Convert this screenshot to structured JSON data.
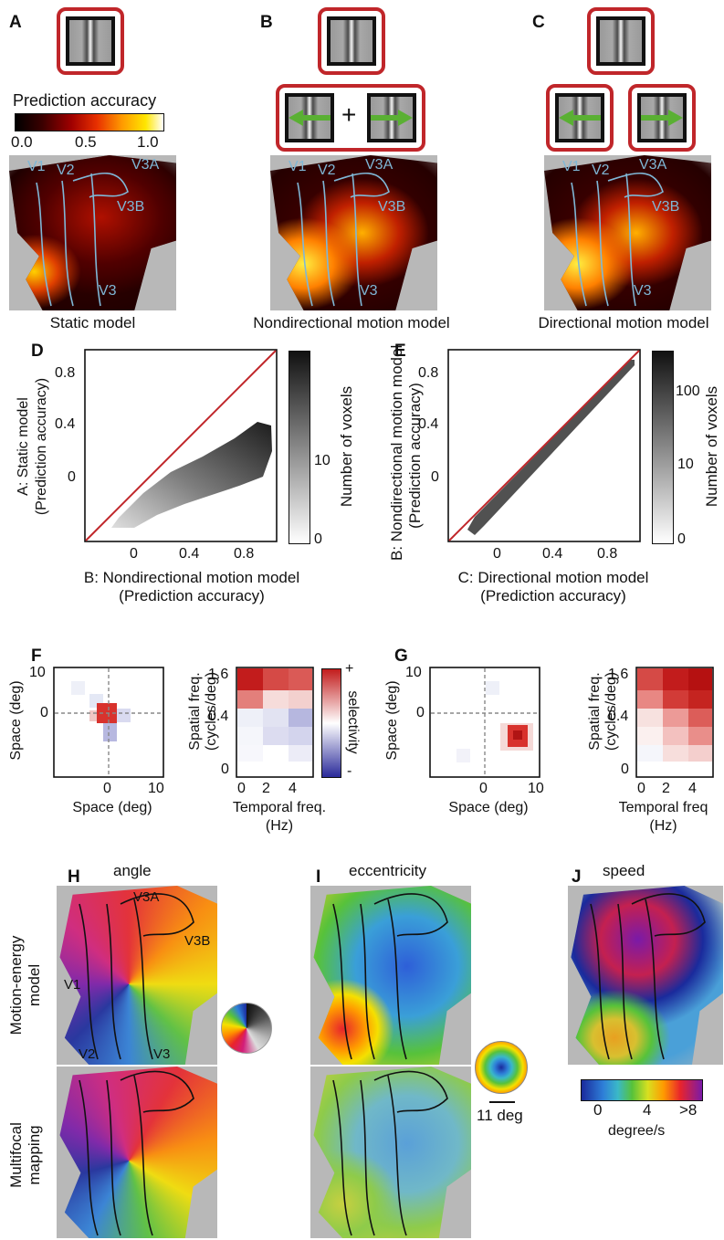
{
  "panels": {
    "A": {
      "label": "A",
      "caption": "Static model"
    },
    "B": {
      "label": "B",
      "caption": "Nondirectional motion model",
      "plus": "+"
    },
    "C": {
      "label": "C",
      "caption": "Directional motion model"
    },
    "D": {
      "label": "D"
    },
    "E": {
      "label": "E"
    },
    "F": {
      "label": "F"
    },
    "G": {
      "label": "G"
    },
    "H": {
      "label": "H",
      "title": "angle"
    },
    "I": {
      "label": "I",
      "title": "eccentricity"
    },
    "J": {
      "label": "J",
      "title": "speed"
    }
  },
  "accuracy_colorbar": {
    "title": "Prediction accuracy",
    "ticks": [
      "0.0",
      "0.5",
      "1.0"
    ]
  },
  "roi_labels": [
    "V1",
    "V2",
    "V3A",
    "V3B",
    "V3"
  ],
  "scatter_D": {
    "xlabel_line1": "B: Nondirectional motion model",
    "xlabel_line2": "(Prediction accuracy)",
    "ylabel_line1": "A: Static model",
    "ylabel_line2": "(Prediction accuracy)",
    "xticks": [
      "0",
      "0.4",
      "0.8"
    ],
    "yticks": [
      "0",
      "0.4",
      "0.8"
    ],
    "cbar_label": "Number of voxels",
    "cbar_ticks": [
      "0",
      "10"
    ]
  },
  "scatter_E": {
    "xlabel_line1": "C: Directional motion model",
    "xlabel_line2": "(Prediction accuracy)",
    "ylabel_line1": "B: Nondirectional motion model",
    "ylabel_line2": "(Prediction accuracy)",
    "xticks": [
      "0",
      "0.4",
      "0.8"
    ],
    "yticks": [
      "0",
      "0.4",
      "0.8"
    ],
    "cbar_label": "Number of voxels",
    "cbar_ticks": [
      "0",
      "10",
      "100"
    ]
  },
  "rf_F": {
    "space_xlabel": "Space (deg)",
    "space_ylabel": "Space (deg)",
    "space_xticks": [
      "0",
      "10"
    ],
    "space_yticks": [
      "10",
      "0"
    ],
    "freq_xlabel_line1": "Temporal freq.",
    "freq_xlabel_line2": "(Hz)",
    "freq_ylabel_line1": "Spatial freq.",
    "freq_ylabel_line2": "(cycles/deg)",
    "freq_xticks": [
      "0",
      "2",
      "4"
    ],
    "freq_yticks": [
      "1.6",
      "0.4",
      "0"
    ],
    "sel_label": "selectivity",
    "sel_plus": "+",
    "sel_minus": "-"
  },
  "rf_G": {
    "space_xlabel": "Space (deg)",
    "space_ylabel": "Space (deg)",
    "space_xticks": [
      "0",
      "10"
    ],
    "space_yticks": [
      "10",
      "0"
    ],
    "freq_xlabel_line1": "Temporal freq",
    "freq_xlabel_line2": "(Hz)",
    "freq_ylabel_line1": "Spatial freq.",
    "freq_ylabel_line2": "(cycles/deg)",
    "freq_xticks": [
      "0",
      "2",
      "4"
    ],
    "freq_yticks": [
      "1.6",
      "0.4",
      "0"
    ]
  },
  "maps": {
    "row1_label_line1": "Motion-energy",
    "row1_label_line2": "model",
    "row2_label_line1": "Multifocal",
    "row2_label_line2": "mapping",
    "ecc_scale": "11 deg",
    "speed_ticks": [
      "0",
      "4",
      ">8"
    ],
    "speed_unit": "degree/s",
    "h_rois": [
      "V3A",
      "V3B",
      "V1",
      "V2",
      "V3"
    ]
  },
  "colors": {
    "stim_frame": "#c0262a",
    "arrow": "#5ab033",
    "roi": "#7fb7d6",
    "diag": "#c0262a"
  }
}
